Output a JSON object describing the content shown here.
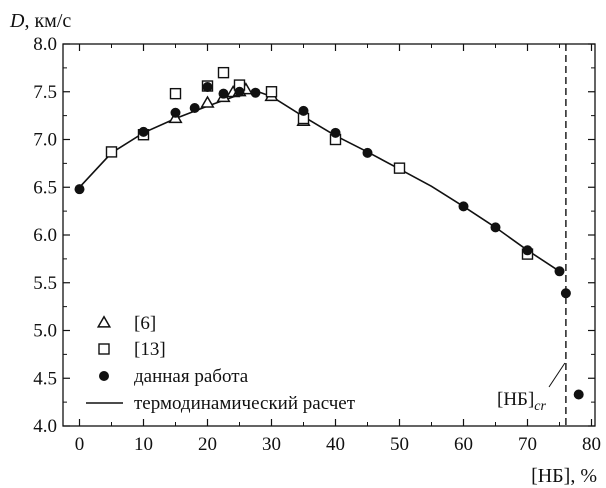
{
  "chart_data": {
    "type": "scatter",
    "ylabel_var": "D",
    "ylabel_unit": ", км/с",
    "xlabel": "[НБ], %",
    "xlim": [
      0,
      80
    ],
    "ylim": [
      4.0,
      8.0
    ],
    "x_ticks": [
      "0",
      "10",
      "20",
      "30",
      "40",
      "50",
      "60",
      "70",
      "80"
    ],
    "y_ticks": [
      "4.0",
      "4.5",
      "5.0",
      "5.5",
      "6.0",
      "6.5",
      "7.0",
      "7.5",
      "8.0"
    ],
    "critical_line": {
      "x": 76,
      "label_main": "[НБ]",
      "label_sub": "cr"
    },
    "series": [
      {
        "name": "[6]",
        "marker": "triangle-open",
        "points": [
          [
            15,
            7.22
          ],
          [
            20,
            7.38
          ],
          [
            22.5,
            7.44
          ],
          [
            24,
            7.49
          ],
          [
            25,
            7.5
          ],
          [
            26,
            7.52
          ],
          [
            30,
            7.45
          ],
          [
            35,
            7.19
          ]
        ]
      },
      {
        "name": "[13]",
        "marker": "square-open",
        "points": [
          [
            5,
            6.87
          ],
          [
            10,
            7.05
          ],
          [
            15,
            7.48
          ],
          [
            20,
            7.56
          ],
          [
            22.5,
            7.7
          ],
          [
            25,
            7.57
          ],
          [
            30,
            7.5
          ],
          [
            35,
            7.22
          ],
          [
            40,
            7.0
          ],
          [
            50,
            6.7
          ],
          [
            70,
            5.8
          ]
        ]
      },
      {
        "name": "данная работа",
        "marker": "circle-filled",
        "points": [
          [
            0,
            6.48
          ],
          [
            10,
            7.08
          ],
          [
            15,
            7.28
          ],
          [
            18,
            7.33
          ],
          [
            20,
            7.55
          ],
          [
            22.5,
            7.48
          ],
          [
            25,
            7.5
          ],
          [
            27.5,
            7.49
          ],
          [
            35,
            7.3
          ],
          [
            40,
            7.07
          ],
          [
            45,
            6.86
          ],
          [
            60,
            6.3
          ],
          [
            65,
            6.08
          ],
          [
            70,
            5.84
          ],
          [
            75,
            5.62
          ],
          [
            76,
            5.39
          ],
          [
            78,
            4.33
          ]
        ]
      },
      {
        "name": "термодинамический расчет",
        "marker": "line",
        "points": [
          [
            0,
            6.5
          ],
          [
            5,
            6.86
          ],
          [
            10,
            7.07
          ],
          [
            15,
            7.22
          ],
          [
            20,
            7.35
          ],
          [
            25,
            7.47
          ],
          [
            27.5,
            7.51
          ],
          [
            30,
            7.45
          ],
          [
            35,
            7.24
          ],
          [
            40,
            7.04
          ],
          [
            45,
            6.87
          ],
          [
            50,
            6.69
          ],
          [
            55,
            6.51
          ],
          [
            60,
            6.3
          ],
          [
            65,
            6.08
          ],
          [
            70,
            5.84
          ],
          [
            75,
            5.62
          ]
        ]
      }
    ]
  }
}
